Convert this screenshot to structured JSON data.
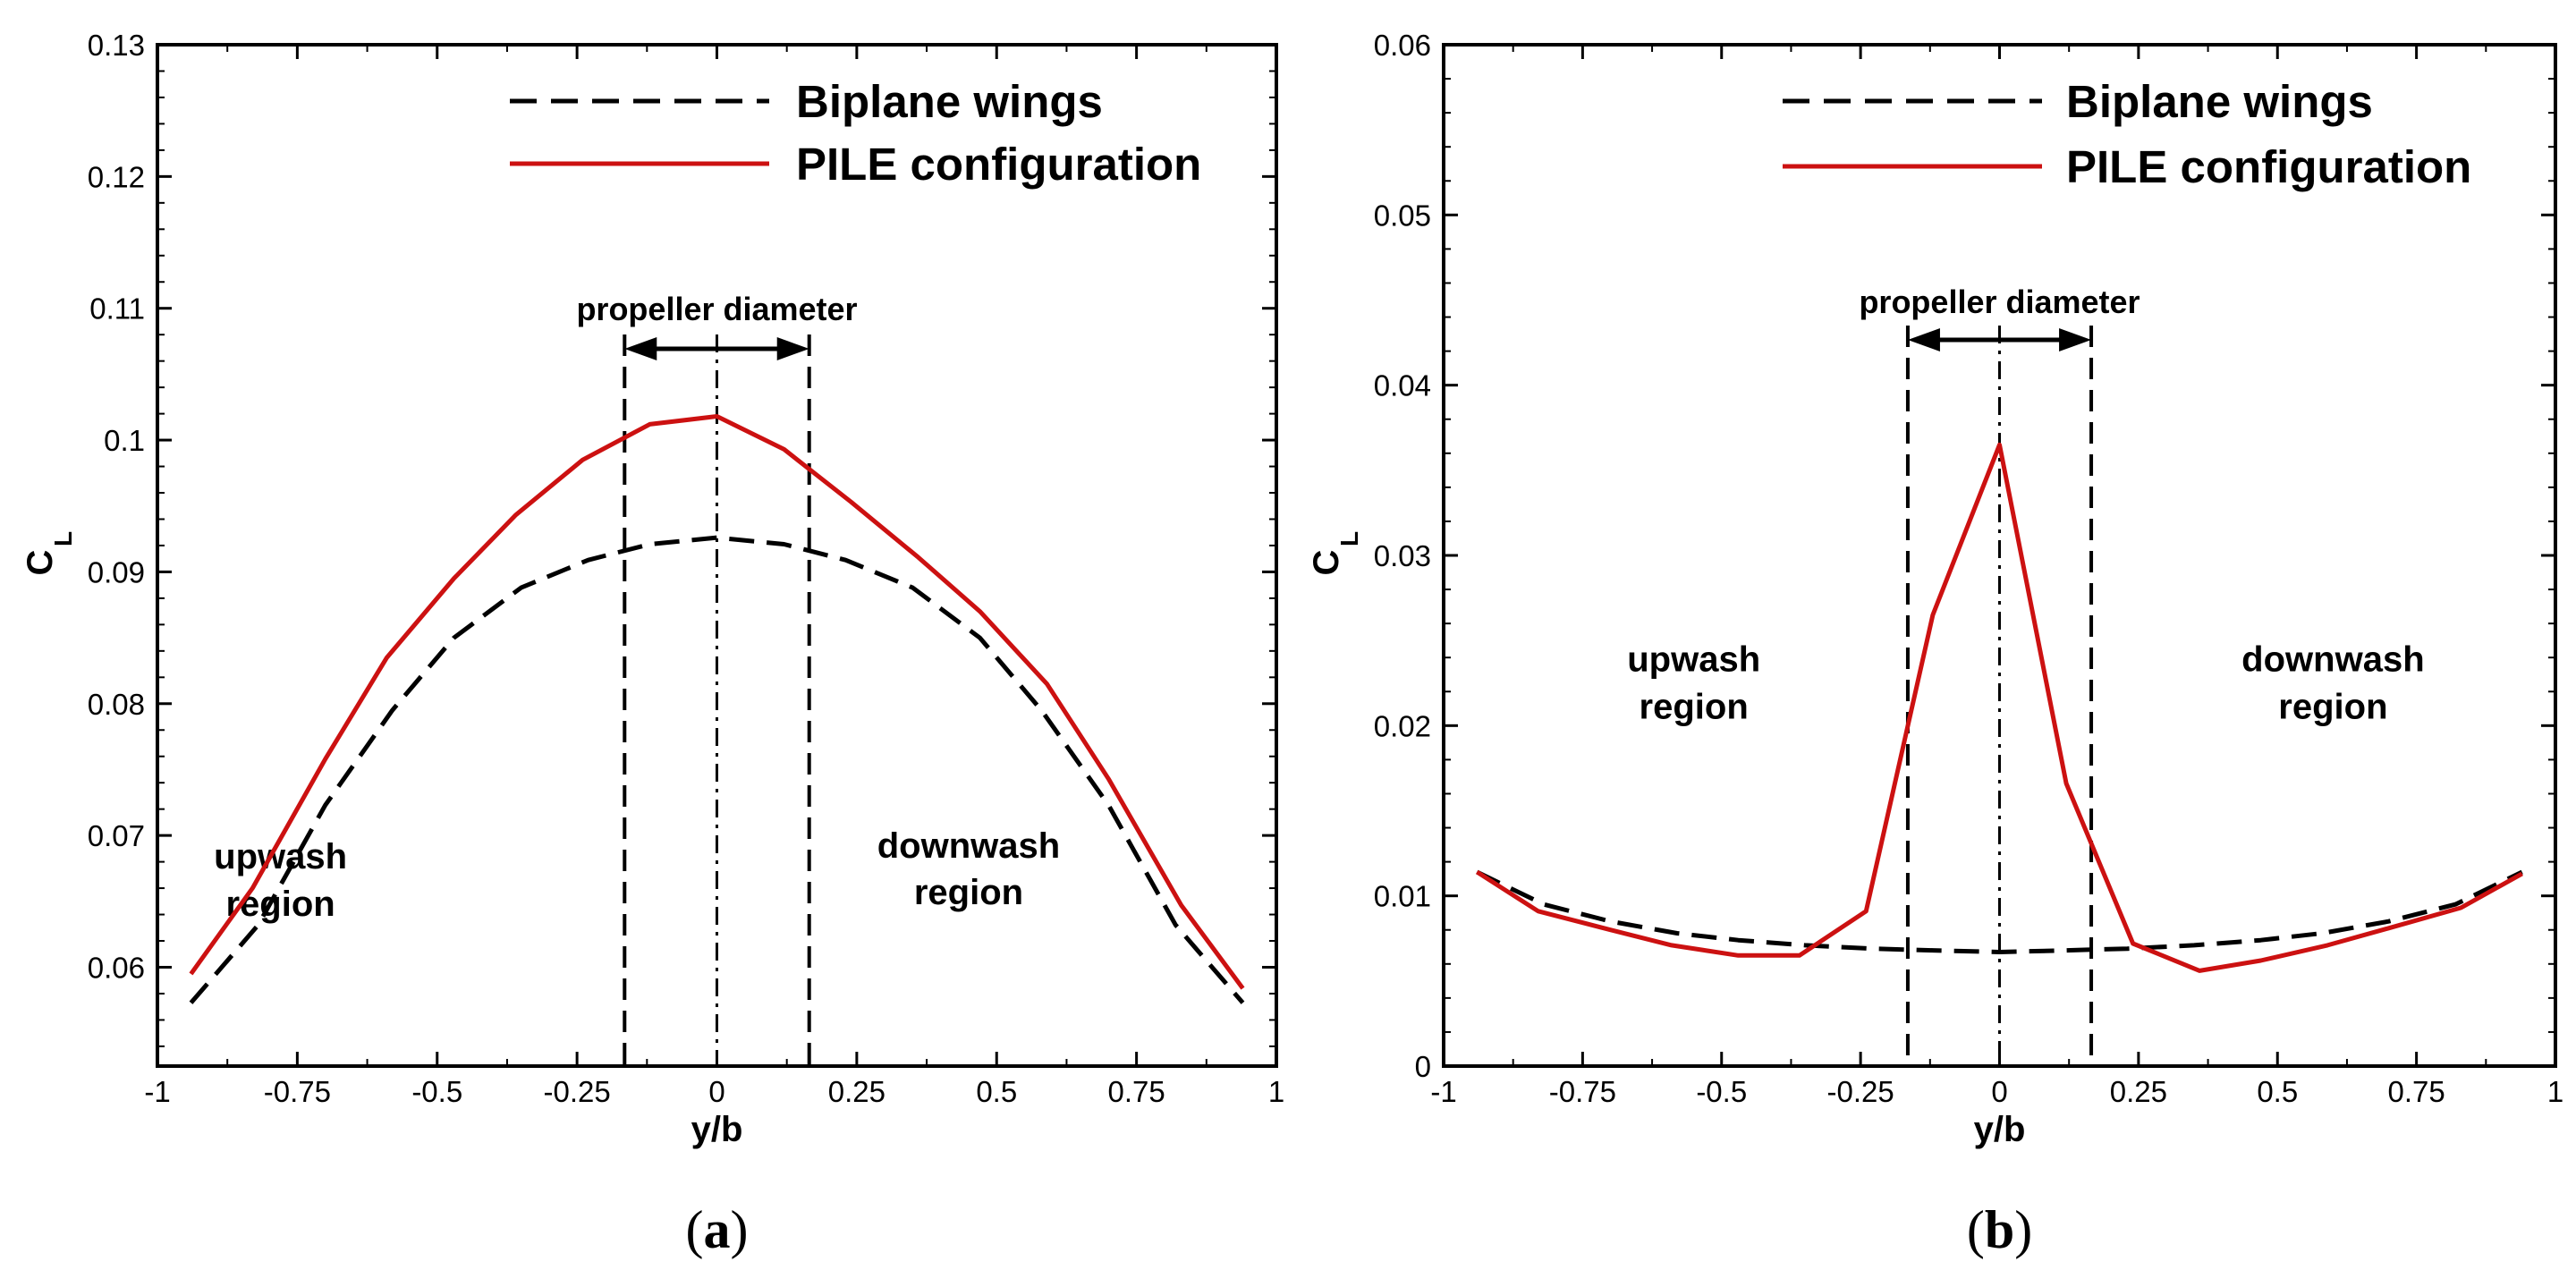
{
  "colors": {
    "biplane": "#000000",
    "pile": "#cc1111"
  },
  "chart_data": [
    {
      "type": "line",
      "caption_open": "(",
      "caption_letter": "a",
      "caption_close": ")",
      "xlabel": "y/b",
      "ylabel_main": "C",
      "ylabel_sub": "L",
      "xlim": [
        -1,
        1
      ],
      "ylim": [
        0.0525,
        0.13
      ],
      "x_ticks": [
        -1,
        -0.75,
        -0.5,
        -0.25,
        0,
        0.25,
        0.5,
        0.75,
        1
      ],
      "x_tick_labels": [
        "-1",
        "-0.75",
        "-0.5",
        "-0.25",
        "0",
        "0.25",
        "0.5",
        "0.75",
        "1"
      ],
      "y_ticks": [
        0.06,
        0.07,
        0.08,
        0.09,
        0.1,
        0.11,
        0.12,
        0.13
      ],
      "y_tick_labels": [
        "0.06",
        "0.07",
        "0.08",
        "0.09",
        "0.1",
        "0.11",
        "0.12",
        "0.13"
      ],
      "legend": [
        "Biplane wings",
        "PILE configuration"
      ],
      "annotation_propeller": "propeller diameter",
      "annotation_left_line1": "upwash",
      "annotation_left_line2": "region",
      "annotation_right_line1": "downwash",
      "annotation_right_line2": "region",
      "propeller_bounds": [
        -0.165,
        0.165
      ],
      "series": [
        {
          "name": "Biplane wings",
          "style": "dashed",
          "x": [
            -0.94,
            -0.82,
            -0.7,
            -0.58,
            -0.47,
            -0.35,
            -0.23,
            -0.12,
            0,
            0.12,
            0.23,
            0.35,
            0.47,
            0.58,
            0.7,
            0.82,
            0.94
          ],
          "y": [
            0.0573,
            0.0632,
            0.0723,
            0.0795,
            0.085,
            0.0888,
            0.0909,
            0.0921,
            0.0926,
            0.0921,
            0.0909,
            0.0888,
            0.085,
            0.0795,
            0.0723,
            0.0632,
            0.0573
          ]
        },
        {
          "name": "PILE configuration",
          "style": "solid",
          "x": [
            -0.94,
            -0.83,
            -0.7,
            -0.59,
            -0.47,
            -0.36,
            -0.24,
            -0.12,
            0,
            0.12,
            0.24,
            0.36,
            0.47,
            0.59,
            0.7,
            0.83,
            0.94
          ],
          "y": [
            0.0595,
            0.066,
            0.0758,
            0.0835,
            0.0895,
            0.0943,
            0.0985,
            0.1012,
            0.1018,
            0.0993,
            0.0953,
            0.0911,
            0.087,
            0.0815,
            0.0743,
            0.0647,
            0.0584
          ]
        }
      ]
    },
    {
      "type": "line",
      "caption_open": "(",
      "caption_letter": "b",
      "caption_close": ")",
      "xlabel": "y/b",
      "ylabel_main": "C",
      "ylabel_sub": "L",
      "xlim": [
        -1,
        1
      ],
      "ylim": [
        0,
        0.06
      ],
      "x_ticks": [
        -1,
        -0.75,
        -0.5,
        -0.25,
        0,
        0.25,
        0.5,
        0.75,
        1
      ],
      "x_tick_labels": [
        "-1",
        "-0.75",
        "-0.5",
        "-0.25",
        "0",
        "0.25",
        "0.5",
        "0.75",
        "1"
      ],
      "y_ticks": [
        0,
        0.01,
        0.02,
        0.03,
        0.04,
        0.05,
        0.06
      ],
      "y_tick_labels": [
        "0",
        "0.01",
        "0.02",
        "0.03",
        "0.04",
        "0.05",
        "0.06"
      ],
      "legend": [
        "Biplane wings",
        "PILE configuration"
      ],
      "annotation_propeller": "propeller diameter",
      "annotation_left_line1": "upwash",
      "annotation_left_line2": "region",
      "annotation_right_line1": "downwash",
      "annotation_right_line2": "region",
      "propeller_bounds": [
        -0.165,
        0.165
      ],
      "series": [
        {
          "name": "Biplane wings",
          "style": "dashed",
          "x": [
            -0.94,
            -0.82,
            -0.7,
            -0.58,
            -0.47,
            -0.35,
            -0.23,
            -0.12,
            0,
            0.12,
            0.23,
            0.35,
            0.47,
            0.58,
            0.7,
            0.82,
            0.94
          ],
          "y": [
            0.0114,
            0.0095,
            0.0085,
            0.0078,
            0.0074,
            0.0071,
            0.0069,
            0.0068,
            0.0067,
            0.0068,
            0.0069,
            0.0071,
            0.0074,
            0.0078,
            0.0085,
            0.0095,
            0.0114
          ]
        },
        {
          "name": "PILE configuration",
          "style": "solid",
          "x": [
            -0.94,
            -0.83,
            -0.7,
            -0.59,
            -0.47,
            -0.36,
            -0.24,
            -0.12,
            0,
            0.12,
            0.24,
            0.36,
            0.47,
            0.59,
            0.7,
            0.83,
            0.94
          ],
          "y": [
            0.0114,
            0.0091,
            0.008,
            0.0071,
            0.0065,
            0.0065,
            0.0091,
            0.0265,
            0.0365,
            0.0166,
            0.0072,
            0.0056,
            0.0062,
            0.0071,
            0.0081,
            0.0093,
            0.0113
          ]
        }
      ]
    }
  ]
}
